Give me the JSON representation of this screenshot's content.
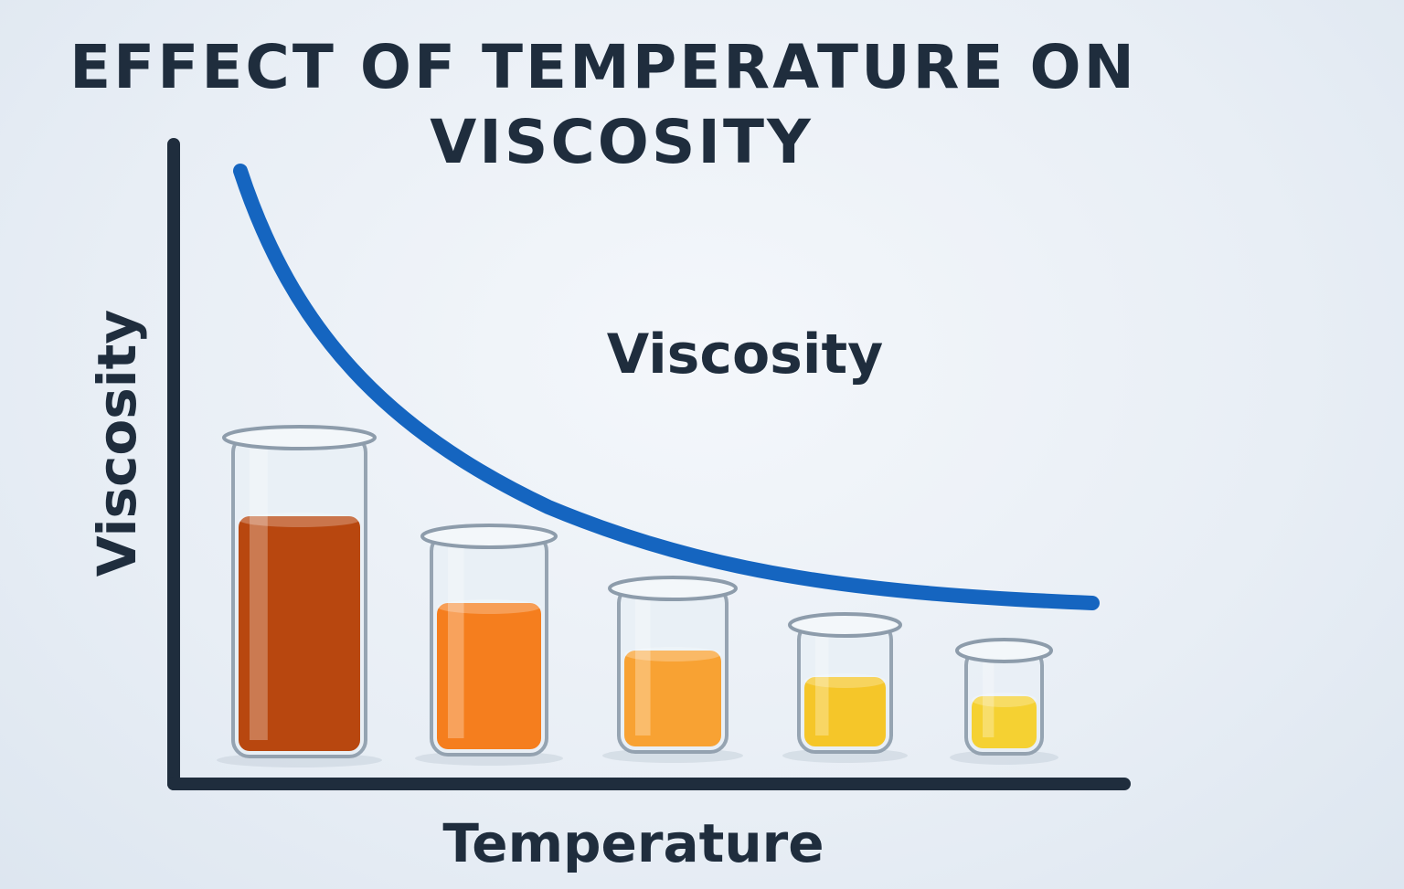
{
  "title": {
    "line1": "EFFECT OF TEMPERATURE ON",
    "line2": "VISCOSITY"
  },
  "curve_label": "Viscosity",
  "y_axis_label": "Viscosity",
  "x_axis_label": "Temperature",
  "colors": {
    "curve": "#1565c0",
    "axes": "#1f2d3d",
    "liquids": [
      "#b8470f",
      "#f57e1e",
      "#f8a233",
      "#f5c629",
      "#f5d132"
    ]
  },
  "beakers": [
    {
      "liquid_color": "#b8470f"
    },
    {
      "liquid_color": "#f57e1e"
    },
    {
      "liquid_color": "#f8a233"
    },
    {
      "liquid_color": "#f5c629"
    },
    {
      "liquid_color": "#f5d132"
    }
  ]
}
